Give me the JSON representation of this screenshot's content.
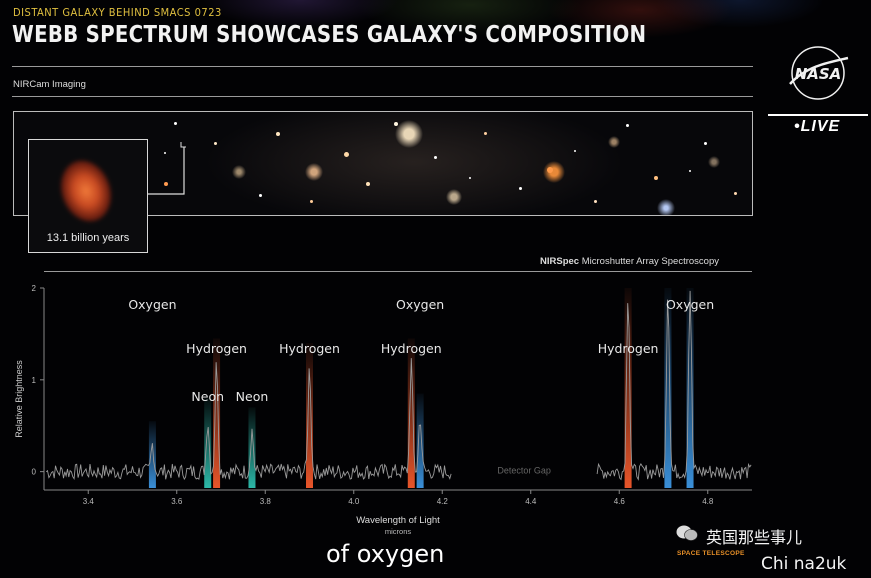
{
  "header": {
    "kicker": "DISTANT GALAXY BEHIND SMACS 0723",
    "title": "WEBB SPECTRUM SHOWCASES GALAXY'S COMPOSITION"
  },
  "imaging": {
    "section_label": "NIRCam Imaging",
    "inset_label": "13.1 billion years"
  },
  "spectroscopy": {
    "section_label_bold": "NIRSpec",
    "section_label_rest": " Microshutter Array Spectroscopy"
  },
  "branding": {
    "nasa_logo_text": "NASA",
    "live_label": "LIVE",
    "space_telescope_label": "SPACE TELESCOPE"
  },
  "caption": {
    "text": "of oxygen"
  },
  "watermark": {
    "chinese": "英国那些事儿",
    "site": "Chi na2uk"
  },
  "chart_data": {
    "type": "line",
    "xlabel": "Wavelength of Light",
    "xunit": "microns",
    "ylabel": "Relative Brightness",
    "xlim": [
      3.3,
      4.9
    ],
    "ylim": [
      -0.2,
      2.0
    ],
    "x_ticks": [
      "3.4",
      "3.6",
      "3.8",
      "4.0",
      "4.2",
      "4.4",
      "4.6",
      "4.8"
    ],
    "y_ticks": [
      "0",
      "1",
      "2"
    ],
    "gap": {
      "label": "Detector Gap",
      "range": [
        4.22,
        4.55
      ]
    },
    "lines": [
      {
        "element": "Oxygen",
        "x": 3.545,
        "peak": 0.3,
        "color": "#3a8fd8",
        "label": "Oxygen",
        "label_level": 1.77
      },
      {
        "element": "Neon",
        "x": 3.67,
        "peak": 0.55,
        "color": "#2cb8a8",
        "label": "Neon",
        "label_level": 0.77
      },
      {
        "element": "Hydrogen",
        "x": 3.69,
        "peak": 1.2,
        "color": "#e8552a",
        "label": "Hydrogen",
        "label_level": 1.29
      },
      {
        "element": "Neon",
        "x": 3.77,
        "peak": 0.45,
        "color": "#2cb8a8",
        "label": "Neon",
        "label_level": 0.77
      },
      {
        "element": "Hydrogen",
        "x": 3.9,
        "peak": 1.15,
        "color": "#e8552a",
        "label": "Hydrogen",
        "label_level": 1.29
      },
      {
        "element": "Hydrogen",
        "x": 4.13,
        "peak": 1.2,
        "color": "#e8552a",
        "label": "Hydrogen",
        "label_level": 1.29
      },
      {
        "element": "Oxygen",
        "x": 4.15,
        "peak": 0.6,
        "color": "#3a8fd8",
        "label": "Oxygen",
        "label_level": 1.77
      },
      {
        "element": "Hydrogen",
        "x": 4.62,
        "peak": 2.0,
        "color": "#e8552a",
        "label": "Hydrogen",
        "label_level": 1.29
      },
      {
        "element": "Oxygen",
        "x": 4.71,
        "peak": 2.0,
        "color": "#3a8fd8",
        "label": "",
        "label_level": 1.77
      },
      {
        "element": "Oxygen",
        "x": 4.76,
        "peak": 2.0,
        "color": "#3a8fd8",
        "label": "Oxygen",
        "label_level": 1.77
      }
    ]
  }
}
